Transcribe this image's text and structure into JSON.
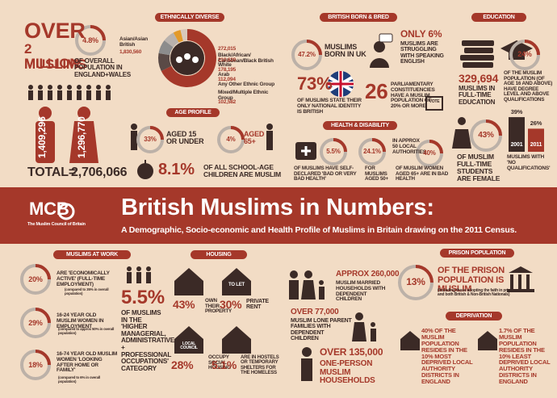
{
  "header": {
    "logo": "MCB",
    "org": "The Muslim Council of Britain",
    "title": "British Muslims in Numbers:",
    "subtitle": "A Demographic, Socio-economic and Health Profile of Muslims in Britain drawing on the 2011 Census."
  },
  "population": {
    "over": "OVER",
    "million": "2 MILLION",
    "muslims": "MUSLIMS",
    "pct": "4.8%",
    "desc": "OF OVERALL POPULATION IN ENGLAND+WALES",
    "male": "1,409,296",
    "female": "1,296,770",
    "total_label": "TOTAL=",
    "total": "2,706,066"
  },
  "ethnicity": {
    "title": "ETHNICALLY DIVERSE",
    "names": [
      "Asian/Asian British",
      "Black/African/ Caribbean/Black British",
      "White",
      "Arab",
      "Any Other Ethnic Group",
      "Mixed/Multiple Ethnic Group"
    ],
    "values": [
      1830560,
      272015,
      210620,
      178195,
      112094,
      102582
    ],
    "value_labels": [
      "1,830,560",
      "272,015",
      "210,620",
      "178,195",
      "112,094",
      "102,582"
    ],
    "colors": [
      "#a5382a",
      "#5a4a46",
      "#8c8c8c",
      "#b9b2ad",
      "#e39a2a",
      "#d8c8bb"
    ]
  },
  "age": {
    "title": "AGE PROFILE",
    "young_pct": "33%",
    "young_label": "AGED 15 OR UNDER",
    "old_pct": "4%",
    "old_label": "AGED 65+",
    "school_pct": "8.1%",
    "school_label": "OF ALL SCHOOL-AGE CHILDREN ARE MUSLIM"
  },
  "british": {
    "title": "BRITISH BORN & BRED",
    "born_pct": "47.2%",
    "born_label": "MUSLIMS BORN IN UK",
    "english_pct": "ONLY 6%",
    "english_label": "MUSLIMS ARE STRUGGLING WITH SPEAKING ENGLISH",
    "identity_pct": "73%",
    "identity_label": "OF MUSLIMS STATE THEIR ONLY NATIONAL IDENTITY IS BRITISH",
    "constituencies": "26",
    "constituencies_label": "PARLIAMENTARY CONSTITUENCIES HAVE A MUSLIM POPULATION OF 20% OR MORE",
    "vote": "VOTE"
  },
  "health": {
    "title": "HEALTH & DISABILITY",
    "bad_pct": "5.5%",
    "bad_label": "OF MUSLIMS HAVE SELF-DECLARED 'BAD OR VERY BAD HEALTH'",
    "aged_pct": "24.1%",
    "aged_label": "FOR MUSLIMS AGED 50+",
    "la_label": "IN APPROX 50 LOCAL AUTHORITIES",
    "women_pct": "40%",
    "women_label": "OF MUSLIM WOMEN AGED 65+ ARE IN BAD HEALTH"
  },
  "education": {
    "title": "EDUCATION",
    "fulltime": "329,694",
    "fulltime_label": "MUSLIMS IN FULL-TIME EDUCATION",
    "degree_pct": "24%",
    "degree_label": "OF THE MUSLIM POPULATION (OF AGE 16 AND ABOVE) HAVE DEGREE LEVEL AND ABOVE QUALIFICATIONS",
    "female_pct": "43%",
    "female_label": "OF MUSLIM FULL-TIME STUDENTS ARE FEMALE",
    "no_qual": {
      "years": [
        "2001",
        "2011"
      ],
      "values": [
        39,
        26
      ],
      "value_labels": [
        "39%",
        "26%"
      ],
      "label": "MUSLIMS WITH 'NO QUALIFICATIONS'"
    }
  },
  "work": {
    "title": "MUSLIMS AT WORK",
    "items": [
      {
        "pct": "20%",
        "label": "ARE 'ECONOMICALLY ACTIVE' (FULL-TIME EMPLOYMENT)",
        "note": "(compared to 35% in overall population)"
      },
      {
        "pct": "29%",
        "label": "16-24 YEAR OLD MUSLIM WOMEN IN EMPLOYMENT",
        "note": "(compared to approx 50% in overall population)"
      },
      {
        "pct": "18%",
        "label": "16-74 YEAR OLD MUSLIM WOMEN 'LOOKING AFTER HOME OR FAMILY'",
        "note": "(compared to 6% in overall population)"
      }
    ],
    "managerial_pct": "5.5%",
    "managerial_label": "OF MUSLIMS IN THE 'HIGHER MANAGERIAL, ADMINISTRATIVE + PROFESSIONAL OCCUPATIONS' CATEGORY"
  },
  "housing": {
    "title": "HOUSING",
    "tolet": "TO LET",
    "local": "LOCAL COUNCIL",
    "items": [
      {
        "pct": "43%",
        "label": "OWN THEIR PROPERTY"
      },
      {
        "pct": "30%",
        "label": "PRIVATE RENT"
      },
      {
        "pct": "28%",
        "label": "OCCUPY SOCIAL HOUSING"
      },
      {
        "pct": "5.1%",
        "label": "ARE IN HOSTELS OR TEMPORARY SHELTERS FOR THE HOMELESS"
      }
    ]
  },
  "families": {
    "married_num": "APPROX 260,000",
    "married_label": "MUSLIM MARRIED HOUSEHOLDS WITH DEPENDENT CHILDREN",
    "lone_num": "OVER 77,000",
    "lone_label": "MUSLIM LONE PARENT FAMILIES WITH DEPENDENT CHILDREN",
    "single_num": "OVER 135,000",
    "single_label": "ONE-PERSON MUSLIM HOUSEHOLDS"
  },
  "prison": {
    "title": "PRISON POPULATION",
    "pct": "13%",
    "label": "OF THE PRISON POPULATION IS MUSLIM",
    "note": "(Including those adopting the faith in prison and both British & Non-British Nationals)"
  },
  "deprivation": {
    "title": "DEPRIVATION",
    "most": "40% OF THE MUSLIM POPULATION RESIDES IN THE 10% MOST DEPRIVED LOCAL AUTHORITY DISTRICTS IN ENGLAND",
    "least": "1.7% OF THE MUSLIM POPULATION RESIDES IN THE 10% LEAST DEPRIVED LOCAL AUTHORITY DISTRICTS IN ENGLAND"
  }
}
